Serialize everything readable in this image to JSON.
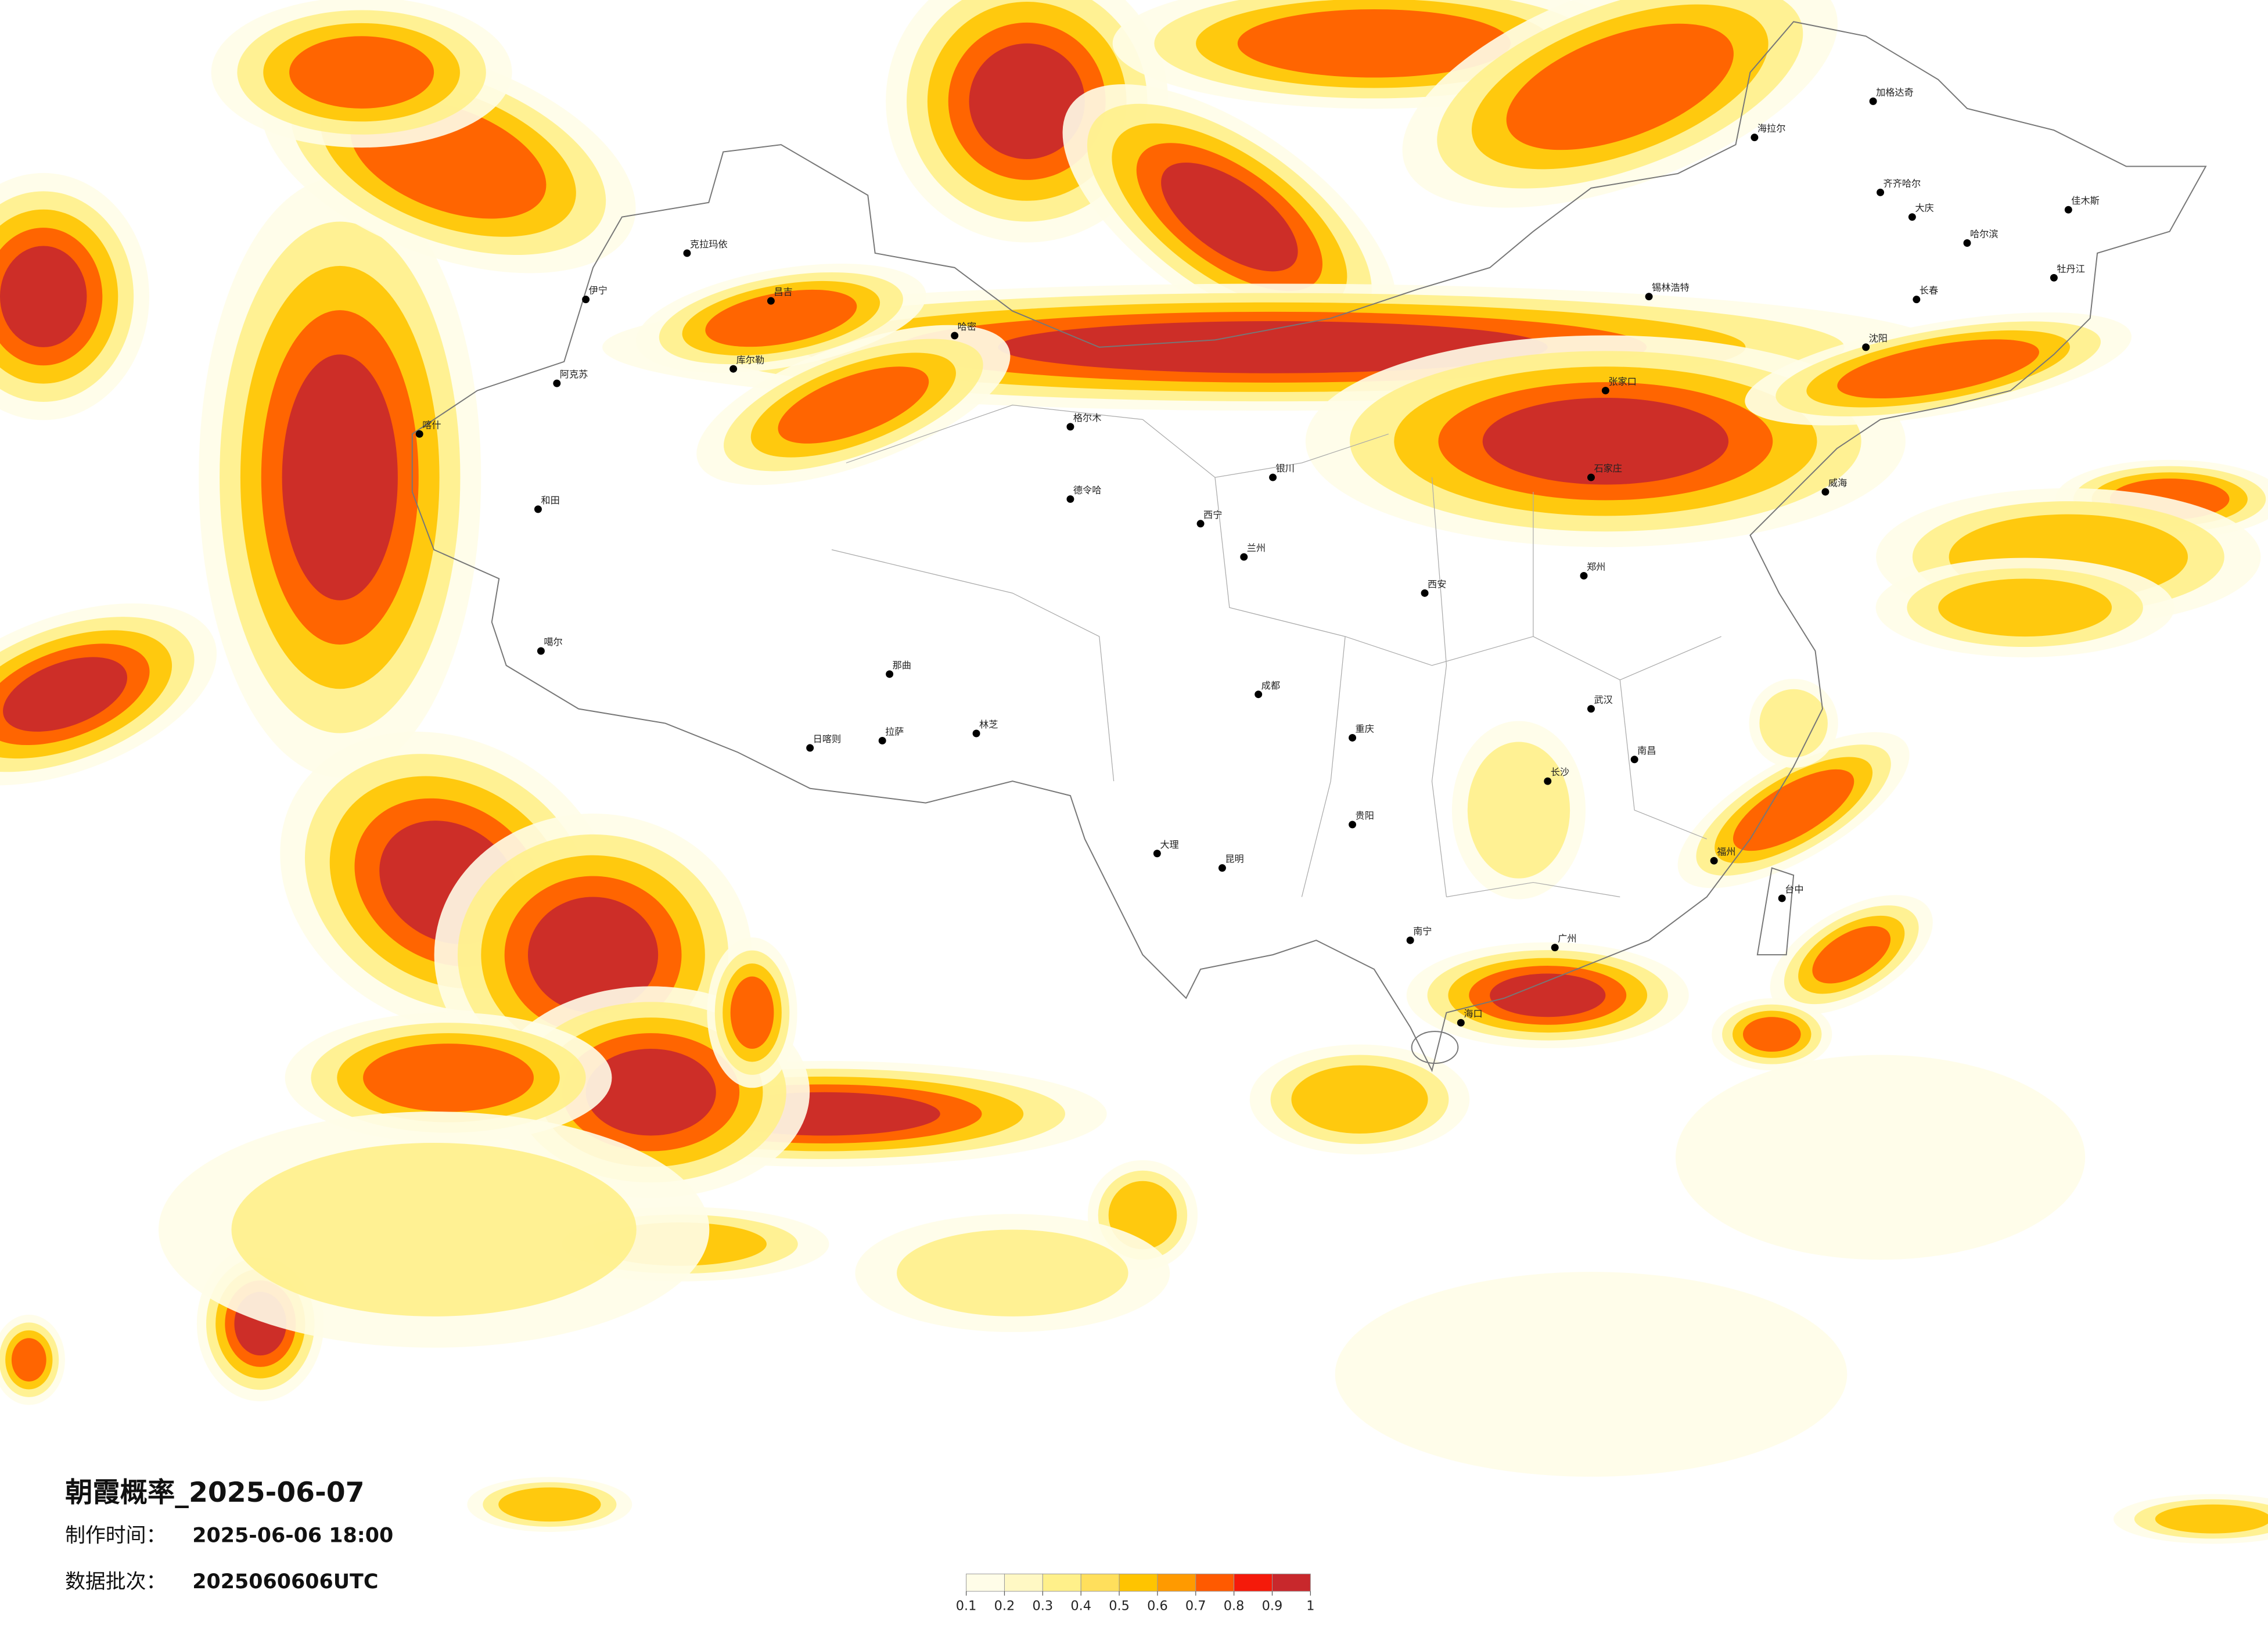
{
  "title": "朝霞概率_2025-06-07",
  "info": [
    {
      "label": "制作时间：",
      "value": "2025-06-06 18:00"
    },
    {
      "label": "数据批次：",
      "value": "2025060606UTC"
    }
  ],
  "legend": {
    "ticks": [
      0.1,
      0.2,
      0.3,
      0.4,
      0.5,
      0.6,
      0.7,
      0.8,
      0.9,
      1
    ],
    "colors": [
      "#fffde8",
      "#fff8c4",
      "#fff08a",
      "#ffdf5c",
      "#ffc400",
      "#ff9a00",
      "#ff5a00",
      "#f51a0a",
      "#c8282c"
    ]
  },
  "cities": [
    "伊宁",
    "克拉玛依",
    "昌吉",
    "哈密",
    "库尔勒",
    "阿克苏",
    "和田",
    "喀什",
    "噶尔",
    "格尔木",
    "德令哈",
    "拉萨",
    "日喀则",
    "林芝",
    "那曲",
    "西宁",
    "兰州",
    "银川",
    "锡林浩特",
    "张家口",
    "石家庄",
    "威海",
    "郑州",
    "武汉",
    "长沙",
    "南昌",
    "福州",
    "广州",
    "南宁",
    "海口",
    "贵阳",
    "昆明",
    "成都",
    "重庆",
    "西安",
    "台中",
    "大理",
    "加格达奇",
    "海拉尔",
    "齐齐哈尔",
    "大庆",
    "哈尔滨",
    "长春",
    "沈阳",
    "佳木斯",
    "牡丹江"
  ]
}
